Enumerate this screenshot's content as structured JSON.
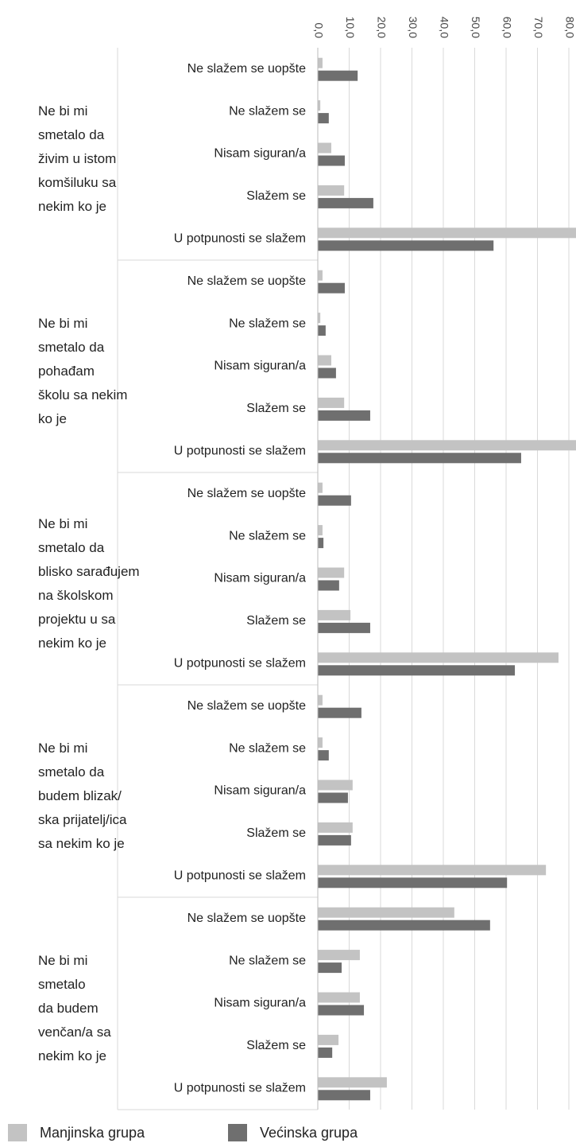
{
  "chart_data": {
    "type": "bar",
    "orientation": "horizontal",
    "groups": [
      [
        "Ne bi mi",
        "smetalo da",
        "živim u istom",
        "komšiluku sa",
        "nekim ko je"
      ],
      [
        "Ne bi mi",
        "smetalo da",
        "pohađam",
        "školu sa nekim",
        "ko je"
      ],
      [
        "Ne bi mi",
        "smetalo da",
        "blisko sarađujem",
        "na školskom",
        "projektu u sa",
        "nekim ko je"
      ],
      [
        "Ne bi mi",
        "smetalo da",
        "budem blizak/",
        "ska prijatelj/ica",
        "sa nekim ko je"
      ],
      [
        "Ne bi mi",
        "smetalo",
        "da budem",
        "venčan/a sa",
        "nekim ko je"
      ]
    ],
    "categories": [
      "Ne slažem se uopšte",
      "Ne slažem se",
      "Nisam siguran/a",
      "Slažem se",
      "U potpunosti se slažem"
    ],
    "series": [
      {
        "name": "Manjinska grupa",
        "color": "#c3c3c3",
        "values": [
          [
            1.5,
            0.8,
            4.3,
            8.4,
            84
          ],
          [
            1.5,
            0.8,
            4.3,
            8.4,
            84
          ],
          [
            1.5,
            1.5,
            8.4,
            10.4,
            76.7
          ],
          [
            1.5,
            1.5,
            11.1,
            11.1,
            72.7
          ],
          [
            43.5,
            13.4,
            13.4,
            6.6,
            22.0
          ]
        ]
      },
      {
        "name": "Većinska grupa",
        "color": "#6f6f6f",
        "values": [
          [
            12.7,
            3.5,
            8.6,
            17.7,
            56.0
          ],
          [
            8.6,
            2.5,
            5.8,
            16.7,
            64.8
          ],
          [
            10.6,
            1.8,
            6.8,
            16.7,
            62.8
          ],
          [
            13.9,
            3.5,
            9.6,
            10.6,
            60.3
          ],
          [
            54.9,
            7.6,
            14.7,
            4.6,
            16.7
          ]
        ]
      }
    ],
    "xlim": [
      0,
      80
    ],
    "xticks": [
      {
        "value": 0,
        "label": "0,0"
      },
      {
        "value": 10,
        "label": "10,0"
      },
      {
        "value": 20,
        "label": "20,0"
      },
      {
        "value": 30,
        "label": "30,0"
      },
      {
        "value": 40,
        "label": "40,0"
      },
      {
        "value": 50,
        "label": "50,0"
      },
      {
        "value": 60,
        "label": "60,0"
      },
      {
        "value": 70,
        "label": "70,0"
      },
      {
        "value": 80,
        "label": "80,0"
      }
    ],
    "grid": true,
    "legend": "bottom"
  }
}
